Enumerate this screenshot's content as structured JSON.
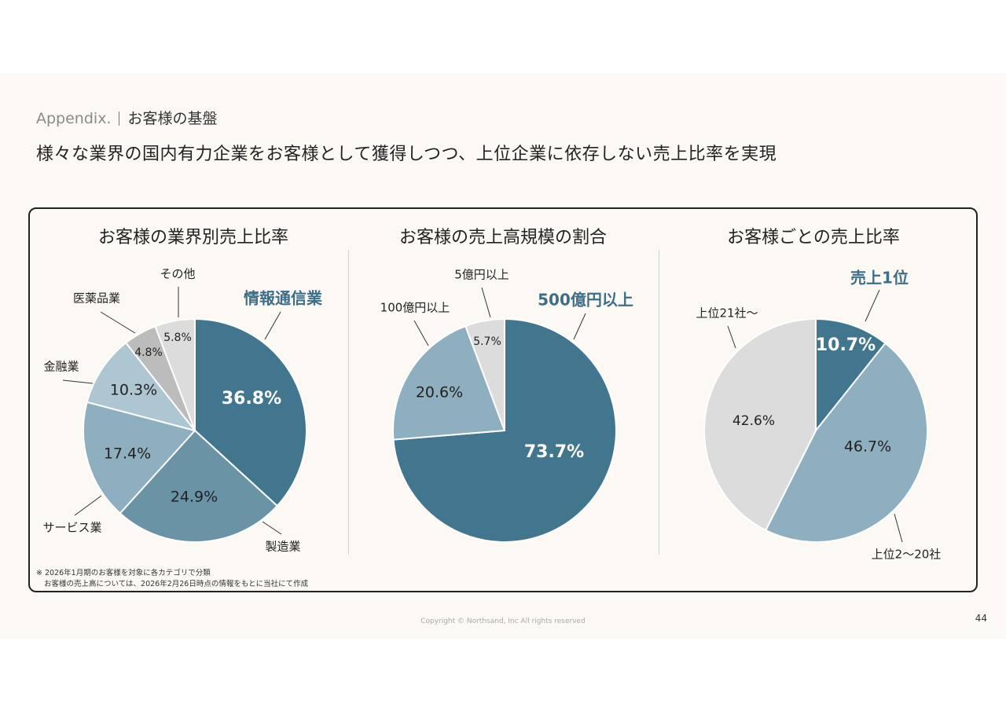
{
  "header": {
    "appendix_label": "Appendix.",
    "section_title": "お客様の基盤",
    "headline": "様々な業界の国内有力企業をお客様として獲得しつつ、上位企業に依存しない売上比率を実現"
  },
  "colors": {
    "dark": "#41768e",
    "mid": "#6b93a6",
    "light": "#8dafbf",
    "pale": "#adc6d1",
    "gray": "#bcbcbc",
    "lightgray": "#dcdcdc",
    "accent_text": "#3d6e88"
  },
  "chart_data": [
    {
      "type": "pie",
      "title": "お客様の業界別売上比率",
      "slices": [
        {
          "label": "情報通信業",
          "value": 36.8,
          "display": "36.8%",
          "highlight": true
        },
        {
          "label": "製造業",
          "value": 24.9,
          "display": "24.9%",
          "highlight": false
        },
        {
          "label": "サービス業",
          "value": 17.4,
          "display": "17.4%",
          "highlight": false
        },
        {
          "label": "金融業",
          "value": 10.3,
          "display": "10.3%",
          "highlight": false
        },
        {
          "label": "医薬品業",
          "value": 4.8,
          "display": "4.8%",
          "highlight": false
        },
        {
          "label": "その他",
          "value": 5.8,
          "display": "5.8%",
          "highlight": false
        }
      ]
    },
    {
      "type": "pie",
      "title": "お客様の売上高規模の割合",
      "slices": [
        {
          "label": "500億円以上",
          "value": 73.7,
          "display": "73.7%",
          "highlight": true
        },
        {
          "label": "100億円以上",
          "value": 20.6,
          "display": "20.6%",
          "highlight": false
        },
        {
          "label": "5億円以上",
          "value": 5.7,
          "display": "5.7%",
          "highlight": false
        }
      ]
    },
    {
      "type": "pie",
      "title": "お客様ごとの売上比率",
      "slices": [
        {
          "label": "売上1位",
          "value": 10.7,
          "display": "10.7%",
          "highlight": true
        },
        {
          "label": "上位2〜20社",
          "value": 46.7,
          "display": "46.7%",
          "highlight": false
        },
        {
          "label": "上位21社〜",
          "value": 42.6,
          "display": "42.6%",
          "highlight": false
        }
      ]
    }
  ],
  "footnote": {
    "line1": "※ 2026年1月期のお客様を対象に各カテゴリで分類",
    "line2": "お客様の売上高については、2026年2月26日時点の情報をもとに当社にて作成"
  },
  "footer": {
    "copyright": "Copyright © Northsand, Inc All rights reserved",
    "page": "44"
  }
}
